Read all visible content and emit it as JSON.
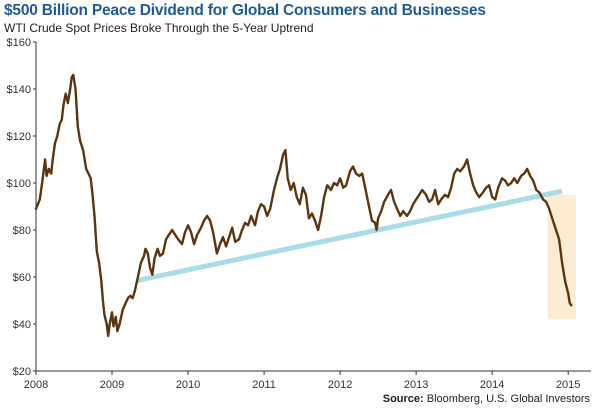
{
  "header": {
    "title": "$500 Billion Peace Dividend for Global Consumers and Businesses",
    "subtitle": "WTI Crude Spot Prices Broke Through the 5-Year Uptrend"
  },
  "footer": {
    "source_label": "Source:",
    "source_text": " Bloomberg, U.S. Global Investors"
  },
  "chart_data": {
    "type": "line",
    "title": "$500 Billion Peace Dividend for Global Consumers and Businesses",
    "subtitle": "WTI Crude Spot Prices Broke Through the 5-Year Uptrend",
    "xlabel": "",
    "ylabel": "",
    "xlim": [
      2008.0,
      2015.3
    ],
    "ylim": [
      20,
      160
    ],
    "x_ticks": [
      2008,
      2009,
      2010,
      2011,
      2012,
      2013,
      2014,
      2015
    ],
    "x_tick_labels": [
      "2008",
      "2009",
      "2010",
      "2011",
      "2012",
      "2013",
      "2014",
      "2015"
    ],
    "y_ticks": [
      20,
      40,
      60,
      80,
      100,
      120,
      140,
      160
    ],
    "y_tick_labels": [
      "$20",
      "$40",
      "$60",
      "$80",
      "$100",
      "$120",
      "$140",
      "$160"
    ],
    "grid": false,
    "colors": {
      "price_line": "#5c3510",
      "trend_line": "#a9dbe8",
      "highlight_box": "#fdebd2",
      "title": "#1f5a96"
    },
    "series": [
      {
        "values": [
          [
            2008.0,
            89
          ],
          [
            2008.05,
            93
          ],
          [
            2008.08,
            100
          ],
          [
            2008.1,
            105
          ],
          [
            2008.12,
            110
          ],
          [
            2008.14,
            103
          ],
          [
            2008.17,
            106
          ],
          [
            2008.2,
            104
          ],
          [
            2008.22,
            110
          ],
          [
            2008.25,
            117
          ],
          [
            2008.28,
            120
          ],
          [
            2008.31,
            125
          ],
          [
            2008.34,
            127
          ],
          [
            2008.36,
            133
          ],
          [
            2008.39,
            138
          ],
          [
            2008.42,
            134
          ],
          [
            2008.45,
            140
          ],
          [
            2008.47,
            145
          ],
          [
            2008.49,
            146
          ],
          [
            2008.52,
            140
          ],
          [
            2008.55,
            124
          ],
          [
            2008.58,
            118
          ],
          [
            2008.62,
            114
          ],
          [
            2008.66,
            106
          ],
          [
            2008.69,
            104
          ],
          [
            2008.72,
            102
          ],
          [
            2008.74,
            96
          ],
          [
            2008.77,
            86
          ],
          [
            2008.8,
            71
          ],
          [
            2008.83,
            66
          ],
          [
            2008.86,
            58
          ],
          [
            2008.88,
            50
          ],
          [
            2008.9,
            44
          ],
          [
            2008.93,
            40
          ],
          [
            2008.95,
            35
          ],
          [
            2008.97,
            40
          ],
          [
            2009.0,
            45
          ],
          [
            2009.02,
            39
          ],
          [
            2009.05,
            43
          ],
          [
            2009.07,
            37
          ],
          [
            2009.1,
            40
          ],
          [
            2009.14,
            46
          ],
          [
            2009.18,
            49
          ],
          [
            2009.21,
            51
          ],
          [
            2009.24,
            52
          ],
          [
            2009.27,
            51
          ],
          [
            2009.3,
            54
          ],
          [
            2009.34,
            60
          ],
          [
            2009.38,
            66
          ],
          [
            2009.42,
            69
          ],
          [
            2009.44,
            72
          ],
          [
            2009.47,
            70
          ],
          [
            2009.5,
            64
          ],
          [
            2009.53,
            61
          ],
          [
            2009.56,
            68
          ],
          [
            2009.6,
            72
          ],
          [
            2009.63,
            69
          ],
          [
            2009.67,
            70
          ],
          [
            2009.71,
            76
          ],
          [
            2009.75,
            78
          ],
          [
            2009.79,
            80
          ],
          [
            2009.83,
            78
          ],
          [
            2009.87,
            76
          ],
          [
            2009.92,
            74
          ],
          [
            2009.96,
            79
          ],
          [
            2010.0,
            82
          ],
          [
            2010.04,
            79
          ],
          [
            2010.08,
            74
          ],
          [
            2010.12,
            78
          ],
          [
            2010.17,
            81
          ],
          [
            2010.21,
            84
          ],
          [
            2010.25,
            86
          ],
          [
            2010.29,
            84
          ],
          [
            2010.33,
            79
          ],
          [
            2010.38,
            70
          ],
          [
            2010.42,
            74
          ],
          [
            2010.46,
            77
          ],
          [
            2010.5,
            73
          ],
          [
            2010.54,
            77
          ],
          [
            2010.58,
            81
          ],
          [
            2010.62,
            75
          ],
          [
            2010.67,
            76
          ],
          [
            2010.71,
            80
          ],
          [
            2010.75,
            83
          ],
          [
            2010.79,
            82
          ],
          [
            2010.83,
            86
          ],
          [
            2010.88,
            82
          ],
          [
            2010.92,
            88
          ],
          [
            2010.96,
            91
          ],
          [
            2011.0,
            90
          ],
          [
            2011.04,
            86
          ],
          [
            2011.08,
            89
          ],
          [
            2011.13,
            97
          ],
          [
            2011.17,
            102
          ],
          [
            2011.21,
            106
          ],
          [
            2011.25,
            112
          ],
          [
            2011.28,
            114
          ],
          [
            2011.31,
            102
          ],
          [
            2011.35,
            97
          ],
          [
            2011.39,
            100
          ],
          [
            2011.43,
            94
          ],
          [
            2011.47,
            91
          ],
          [
            2011.51,
            98
          ],
          [
            2011.55,
            95
          ],
          [
            2011.59,
            85
          ],
          [
            2011.63,
            87
          ],
          [
            2011.67,
            84
          ],
          [
            2011.71,
            80
          ],
          [
            2011.75,
            86
          ],
          [
            2011.79,
            94
          ],
          [
            2011.83,
            99
          ],
          [
            2011.88,
            97
          ],
          [
            2011.92,
            100
          ],
          [
            2011.96,
            99
          ],
          [
            2012.0,
            102
          ],
          [
            2012.04,
            98
          ],
          [
            2012.08,
            99
          ],
          [
            2012.13,
            105
          ],
          [
            2012.17,
            107
          ],
          [
            2012.21,
            104
          ],
          [
            2012.25,
            103
          ],
          [
            2012.29,
            104
          ],
          [
            2012.33,
            98
          ],
          [
            2012.38,
            90
          ],
          [
            2012.42,
            84
          ],
          [
            2012.46,
            83
          ],
          [
            2012.48,
            80
          ],
          [
            2012.5,
            85
          ],
          [
            2012.54,
            88
          ],
          [
            2012.58,
            92
          ],
          [
            2012.63,
            95
          ],
          [
            2012.67,
            97
          ],
          [
            2012.71,
            92
          ],
          [
            2012.75,
            89
          ],
          [
            2012.79,
            86
          ],
          [
            2012.83,
            88
          ],
          [
            2012.88,
            86
          ],
          [
            2012.92,
            88
          ],
          [
            2012.96,
            91
          ],
          [
            2013.0,
            93
          ],
          [
            2013.04,
            95
          ],
          [
            2013.08,
            97
          ],
          [
            2013.13,
            95
          ],
          [
            2013.17,
            92
          ],
          [
            2013.21,
            93
          ],
          [
            2013.25,
            97
          ],
          [
            2013.29,
            91
          ],
          [
            2013.33,
            93
          ],
          [
            2013.38,
            95
          ],
          [
            2013.42,
            94
          ],
          [
            2013.46,
            98
          ],
          [
            2013.5,
            104
          ],
          [
            2013.54,
            106
          ],
          [
            2013.58,
            105
          ],
          [
            2013.63,
            107
          ],
          [
            2013.67,
            110
          ],
          [
            2013.71,
            104
          ],
          [
            2013.75,
            99
          ],
          [
            2013.79,
            96
          ],
          [
            2013.83,
            94
          ],
          [
            2013.88,
            96
          ],
          [
            2013.92,
            98
          ],
          [
            2013.96,
            99
          ],
          [
            2014.0,
            94
          ],
          [
            2014.04,
            93
          ],
          [
            2014.08,
            98
          ],
          [
            2014.13,
            102
          ],
          [
            2014.17,
            101
          ],
          [
            2014.21,
            99
          ],
          [
            2014.25,
            100
          ],
          [
            2014.29,
            102
          ],
          [
            2014.33,
            100
          ],
          [
            2014.38,
            103
          ],
          [
            2014.42,
            104
          ],
          [
            2014.46,
            106
          ],
          [
            2014.5,
            103
          ],
          [
            2014.54,
            101
          ],
          [
            2014.58,
            97
          ],
          [
            2014.62,
            96
          ],
          [
            2014.67,
            93
          ],
          [
            2014.71,
            92
          ],
          [
            2014.75,
            89
          ],
          [
            2014.79,
            85
          ],
          [
            2014.83,
            81
          ],
          [
            2014.88,
            76
          ],
          [
            2014.92,
            66
          ],
          [
            2014.96,
            58
          ],
          [
            2015.0,
            53
          ],
          [
            2015.02,
            49
          ],
          [
            2015.04,
            48
          ]
        ]
      }
    ],
    "trend_line": {
      "x": [
        2009.33,
        2014.92
      ],
      "y": [
        58.5,
        96.5
      ]
    },
    "highlight_region": {
      "x": [
        2014.73,
        2015.1
      ],
      "y": [
        42,
        95
      ]
    }
  }
}
